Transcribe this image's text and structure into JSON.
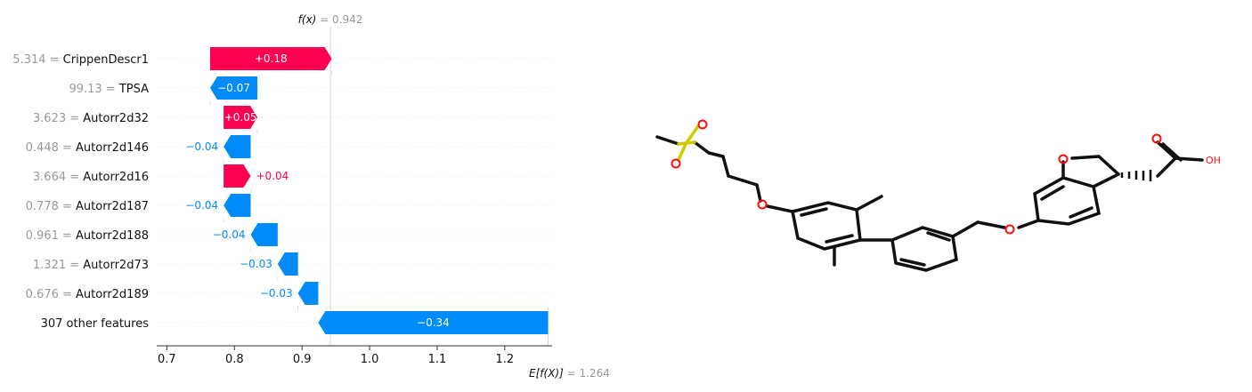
{
  "chart_data": {
    "type": "waterfall",
    "fx_label": "f(x)",
    "fx_value": "0.942",
    "fx_display": "= 0.942",
    "base_label": "E[f(X)]",
    "base_value": "1.264",
    "base_display": "= 1.264",
    "x_ticks": [
      "0.7",
      "0.8",
      "0.9",
      "1.0",
      "1.1",
      "1.2"
    ],
    "x_range": [
      0.685,
      1.27
    ],
    "colors": {
      "positive": "#ff0051",
      "negative": "#008bfb",
      "muted": "#999999"
    },
    "features": [
      {
        "value": "5.314",
        "name": "CrippenDescr1",
        "shap": 0.18,
        "label": "+0.18",
        "inside": true
      },
      {
        "value": "99.13",
        "name": "TPSA",
        "shap": -0.07,
        "label": "−0.07",
        "inside": true
      },
      {
        "value": "3.623",
        "name": "Autorr2d32",
        "shap": 0.05,
        "label": "+0.05",
        "inside": true
      },
      {
        "value": "0.448",
        "name": "Autorr2d146",
        "shap": -0.04,
        "label": "−0.04",
        "inside": false
      },
      {
        "value": "3.664",
        "name": "Autorr2d16",
        "shap": 0.04,
        "label": "+0.04",
        "inside": false
      },
      {
        "value": "0.778",
        "name": "Autorr2d187",
        "shap": -0.04,
        "label": "−0.04",
        "inside": false
      },
      {
        "value": "0.961",
        "name": "Autorr2d188",
        "shap": -0.04,
        "label": "−0.04",
        "inside": false
      },
      {
        "value": "1.321",
        "name": "Autorr2d73",
        "shap": -0.03,
        "label": "−0.03",
        "inside": false
      },
      {
        "value": "0.676",
        "name": "Autorr2d189",
        "shap": -0.03,
        "label": "−0.03",
        "inside": false
      },
      {
        "value": "",
        "name": "307 other features",
        "shap": -0.34,
        "label": "−0.34",
        "inside": true
      }
    ]
  },
  "molecule": {
    "atom_labels": [
      "O",
      "O",
      "O",
      "O",
      "O",
      "O",
      "OH"
    ],
    "colors": {
      "bond": "#111111",
      "oxygen": "#ff0d0d",
      "sulfur": "#cccc00"
    }
  }
}
